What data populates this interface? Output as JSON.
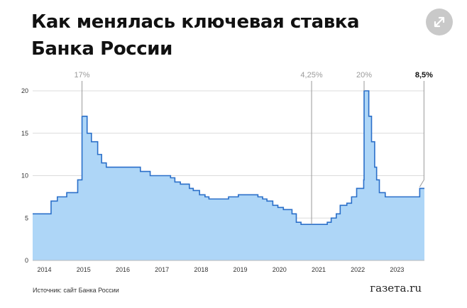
{
  "header": {
    "title_line1": "Как менялась ключевая ставка",
    "title_line2": "Банка России",
    "expand_icon": "expand-arrows-icon"
  },
  "footer": {
    "source": "Источник: сайт Банка России",
    "brand": "газета.ru"
  },
  "colors": {
    "area_fill": "#aed6f7",
    "line": "#2a6fc9",
    "grid": "#dcdcdc",
    "annotation": "#9a9a9a"
  },
  "chart_data": {
    "type": "area",
    "title": "Как менялась ключевая ставка Банка России",
    "xlabel": "",
    "ylabel": "",
    "grid": true,
    "legend": "none",
    "xlim": [
      2013.7,
      2023.7
    ],
    "ylim": [
      0,
      20
    ],
    "x_ticks": [
      "2014",
      "2015",
      "2016",
      "2017",
      "2018",
      "2019",
      "2020",
      "2021",
      "2022",
      "2023"
    ],
    "y_ticks": [
      "0",
      "5",
      "10",
      "15",
      "20"
    ],
    "series": [
      {
        "x": [
          2013.7,
          2014.17,
          2014.33,
          2014.57,
          2014.85,
          2014.96,
          2015.09,
          2015.2,
          2015.36,
          2015.46,
          2015.58,
          2016.45,
          2016.7,
          2017.22,
          2017.33,
          2017.47,
          2017.7,
          2017.8,
          2017.96,
          2018.1,
          2018.2,
          2018.7,
          2018.95,
          2019.45,
          2019.57,
          2019.68,
          2019.83,
          2019.96,
          2020.1,
          2020.32,
          2020.43,
          2020.55,
          2021.22,
          2021.32,
          2021.45,
          2021.55,
          2021.72,
          2021.84,
          2021.97,
          2022.15,
          2022.16,
          2022.28,
          2022.35,
          2022.43,
          2022.48,
          2022.55,
          2022.7,
          2023.5,
          2023.58,
          2023.7
        ],
        "y": [
          5.5,
          7,
          7.5,
          8,
          9.5,
          17,
          15,
          14,
          12.5,
          11.5,
          11,
          10.5,
          10,
          9.75,
          9.25,
          9,
          8.5,
          8.25,
          7.75,
          7.5,
          7.25,
          7.5,
          7.75,
          7.5,
          7.25,
          7,
          6.5,
          6.25,
          6,
          5.5,
          4.5,
          4.25,
          4.5,
          5,
          5.5,
          6.5,
          6.75,
          7.5,
          8.5,
          9.5,
          20,
          17,
          14,
          11,
          9.5,
          8,
          7.5,
          7.5,
          8.5,
          8.5
        ]
      }
    ],
    "annotations": [
      {
        "label": "17%",
        "x": 2014.96,
        "y": 17,
        "bold": false
      },
      {
        "label": "4,25%",
        "x": 2020.82,
        "y": 4.25,
        "bold": false
      },
      {
        "label": "20%",
        "x": 2022.16,
        "y": 20,
        "bold": false
      },
      {
        "label": "8,5%",
        "x": 2023.58,
        "y": 8.5,
        "bold": true
      }
    ]
  }
}
